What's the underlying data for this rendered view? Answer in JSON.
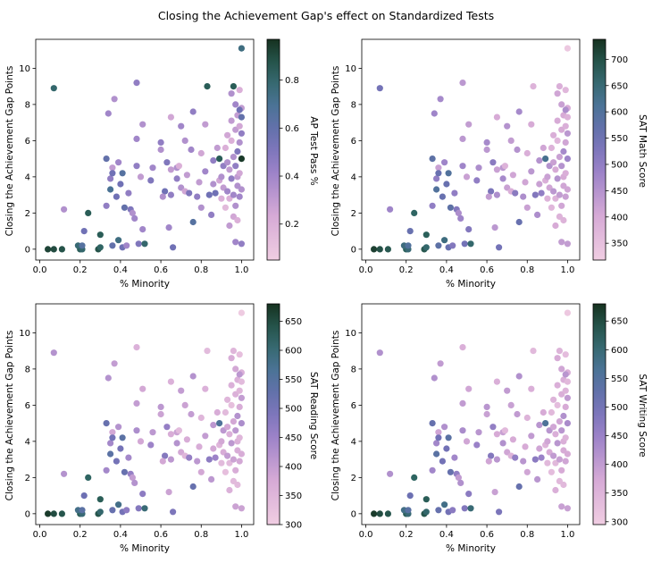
{
  "title": "Closing the Achievement Gap's effect on Standardized Tests",
  "chart_data": [
    {
      "type": "scatter",
      "xlabel": "% Minority",
      "ylabel": "Closing the Achievement Gap Points",
      "colorbar_label": "AP Test Pass %",
      "xlim": [
        -0.02,
        1.06
      ],
      "ylim": [
        -0.6,
        11.6
      ],
      "xticks": [
        "0.0",
        "0.2",
        "0.4",
        "0.6",
        "0.8",
        "1.0"
      ],
      "yticks": [
        "0",
        "2",
        "4",
        "6",
        "8",
        "10"
      ],
      "clim": [
        0.05,
        0.97
      ],
      "colorbar_ticks": [
        "0.2",
        "0.4",
        "0.6",
        "0.8"
      ]
    },
    {
      "type": "scatter",
      "xlabel": "% Minority",
      "ylabel": "Closing the Achievement Gap Points",
      "colorbar_label": "SAT Math Score",
      "xlim": [
        -0.02,
        1.06
      ],
      "ylim": [
        -0.6,
        11.6
      ],
      "xticks": [
        "0.0",
        "0.2",
        "0.4",
        "0.6",
        "0.8",
        "1.0"
      ],
      "yticks": [
        "0",
        "2",
        "4",
        "6",
        "8",
        "10"
      ],
      "clim": [
        318,
        738
      ],
      "colorbar_ticks": [
        "350",
        "400",
        "450",
        "500",
        "550",
        "600",
        "650",
        "700"
      ]
    },
    {
      "type": "scatter",
      "xlabel": "% Minority",
      "ylabel": "Closing the Achievement Gap Points",
      "colorbar_label": "SAT Reading Score",
      "xlim": [
        -0.02,
        1.06
      ],
      "ylim": [
        -0.6,
        11.6
      ],
      "xticks": [
        "0.0",
        "0.2",
        "0.4",
        "0.6",
        "0.8",
        "1.0"
      ],
      "yticks": [
        "0",
        "2",
        "4",
        "6",
        "8",
        "10"
      ],
      "clim": [
        300,
        680
      ],
      "colorbar_ticks": [
        "300",
        "350",
        "400",
        "450",
        "500",
        "550",
        "600",
        "650"
      ]
    },
    {
      "type": "scatter",
      "xlabel": "% Minority",
      "ylabel": "Closing the Achievement Gap Points",
      "colorbar_label": "SAT Writing Score",
      "xlim": [
        -0.02,
        1.06
      ],
      "ylim": [
        -0.6,
        11.6
      ],
      "xticks": [
        "0.0",
        "0.2",
        "0.4",
        "0.6",
        "0.8",
        "1.0"
      ],
      "yticks": [
        "0",
        "2",
        "4",
        "6",
        "8",
        "10"
      ],
      "clim": [
        295,
        680
      ],
      "colorbar_ticks": [
        "300",
        "350",
        "400",
        "450",
        "500",
        "550",
        "600",
        "650"
      ]
    }
  ],
  "points": [
    [
      0.04,
      0,
      0.92,
      720,
      670,
      670
    ],
    [
      0.07,
      0,
      0.9,
      700,
      650,
      650
    ],
    [
      0.11,
      0,
      0.88,
      690,
      640,
      640
    ],
    [
      0.2,
      0,
      0.85,
      680,
      630,
      630
    ],
    [
      0.21,
      0,
      0.8,
      650,
      600,
      600
    ],
    [
      0.29,
      0,
      0.88,
      690,
      640,
      640
    ],
    [
      0.3,
      0.1,
      0.82,
      660,
      610,
      610
    ],
    [
      0.19,
      0.2,
      0.78,
      640,
      580,
      580
    ],
    [
      0.21,
      0.2,
      0.65,
      600,
      540,
      540
    ],
    [
      0.3,
      0.8,
      0.85,
      680,
      630,
      630
    ],
    [
      0.36,
      0.2,
      0.6,
      580,
      520,
      520
    ],
    [
      0.39,
      0.5,
      0.75,
      640,
      580,
      580
    ],
    [
      0.41,
      0.1,
      0.55,
      560,
      500,
      500
    ],
    [
      0.43,
      0.2,
      0.4,
      520,
      470,
      470
    ],
    [
      0.49,
      0.3,
      0.5,
      540,
      480,
      480
    ],
    [
      0.52,
      0.3,
      0.8,
      660,
      600,
      600
    ],
    [
      0.51,
      1.1,
      0.4,
      520,
      470,
      470
    ],
    [
      0.22,
      1.0,
      0.55,
      560,
      510,
      510
    ],
    [
      0.24,
      2.0,
      0.85,
      670,
      620,
      620
    ],
    [
      0.12,
      2.2,
      0.35,
      480,
      420,
      420
    ],
    [
      0.07,
      8.9,
      0.8,
      540,
      420,
      420
    ],
    [
      0.33,
      2.4,
      0.45,
      500,
      440,
      440
    ],
    [
      0.35,
      3.3,
      0.7,
      600,
      540,
      540
    ],
    [
      0.38,
      2.9,
      0.55,
      560,
      500,
      500
    ],
    [
      0.35,
      3.9,
      0.45,
      500,
      440,
      440
    ],
    [
      0.36,
      4.5,
      0.3,
      420,
      380,
      380
    ],
    [
      0.33,
      5.0,
      0.6,
      580,
      520,
      520
    ],
    [
      0.36,
      4.2,
      0.55,
      560,
      500,
      500
    ],
    [
      0.34,
      7.5,
      0.4,
      480,
      420,
      420
    ],
    [
      0.37,
      8.3,
      0.35,
      470,
      400,
      400
    ],
    [
      0.39,
      4.8,
      0.4,
      480,
      420,
      420
    ],
    [
      0.41,
      4.2,
      0.65,
      600,
      540,
      540
    ],
    [
      0.4,
      3.6,
      0.55,
      560,
      500,
      500
    ],
    [
      0.42,
      2.3,
      0.6,
      580,
      520,
      520
    ],
    [
      0.44,
      3.1,
      0.45,
      500,
      440,
      440
    ],
    [
      0.45,
      2.2,
      0.5,
      520,
      460,
      460
    ],
    [
      0.46,
      2.0,
      0.35,
      460,
      400,
      400
    ],
    [
      0.47,
      1.7,
      0.4,
      480,
      420,
      420
    ],
    [
      0.48,
      9.2,
      0.45,
      440,
      360,
      360
    ],
    [
      0.48,
      6.1,
      0.4,
      440,
      400,
      400
    ],
    [
      0.51,
      6.9,
      0.35,
      430,
      380,
      380
    ],
    [
      0.5,
      4.0,
      0.3,
      420,
      380,
      380
    ],
    [
      0.48,
      4.6,
      0.45,
      480,
      430,
      430
    ],
    [
      0.55,
      3.8,
      0.5,
      500,
      450,
      450
    ],
    [
      0.56,
      4.5,
      0.4,
      460,
      410,
      410
    ],
    [
      0.6,
      5.9,
      0.45,
      470,
      410,
      410
    ],
    [
      0.6,
      5.5,
      0.35,
      440,
      390,
      390
    ],
    [
      0.62,
      3.2,
      0.55,
      530,
      480,
      480
    ],
    [
      0.63,
      4.8,
      0.5,
      510,
      460,
      460
    ],
    [
      0.61,
      2.9,
      0.35,
      430,
      380,
      380
    ],
    [
      0.64,
      1.2,
      0.4,
      440,
      390,
      390
    ],
    [
      0.65,
      3.0,
      0.45,
      460,
      410,
      410
    ],
    [
      0.65,
      4.4,
      0.3,
      420,
      370,
      370
    ],
    [
      0.65,
      7.3,
      0.25,
      400,
      360,
      360
    ],
    [
      0.66,
      0.1,
      0.55,
      540,
      490,
      490
    ],
    [
      0.68,
      3.9,
      0.45,
      470,
      420,
      420
    ],
    [
      0.68,
      4.5,
      0.35,
      440,
      390,
      390
    ],
    [
      0.69,
      4.6,
      0.2,
      380,
      340,
      340
    ],
    [
      0.7,
      3.4,
      0.35,
      420,
      380,
      380
    ],
    [
      0.7,
      6.8,
      0.4,
      450,
      400,
      400
    ],
    [
      0.72,
      3.2,
      0.25,
      390,
      350,
      350
    ],
    [
      0.73,
      4.1,
      0.3,
      410,
      370,
      370
    ],
    [
      0.72,
      6.0,
      0.35,
      430,
      390,
      390
    ],
    [
      0.74,
      3.1,
      0.5,
      510,
      460,
      460
    ],
    [
      0.75,
      5.5,
      0.4,
      450,
      400,
      400
    ],
    [
      0.76,
      7.6,
      0.45,
      470,
      420,
      420
    ],
    [
      0.76,
      1.5,
      0.65,
      560,
      520,
      520
    ],
    [
      0.78,
      2.9,
      0.45,
      460,
      410,
      410
    ],
    [
      0.79,
      3.7,
      0.3,
      410,
      370,
      370
    ],
    [
      0.8,
      2.3,
      0.35,
      420,
      380,
      380
    ],
    [
      0.8,
      5.3,
      0.25,
      390,
      350,
      350
    ],
    [
      0.82,
      6.9,
      0.3,
      400,
      360,
      360
    ],
    [
      0.82,
      4.3,
      0.4,
      440,
      400,
      400
    ],
    [
      0.83,
      9.0,
      0.85,
      380,
      340,
      340
    ],
    [
      0.84,
      3.0,
      0.55,
      520,
      470,
      470
    ],
    [
      0.85,
      1.9,
      0.45,
      460,
      410,
      410
    ],
    [
      0.86,
      3.6,
      0.35,
      420,
      380,
      380
    ],
    [
      0.86,
      4.9,
      0.45,
      450,
      410,
      410
    ],
    [
      0.87,
      3.1,
      0.55,
      500,
      450,
      450
    ],
    [
      0.88,
      5.6,
      0.3,
      410,
      370,
      370
    ],
    [
      0.89,
      5.0,
      0.85,
      620,
      560,
      560
    ],
    [
      0.89,
      3.8,
      0.25,
      390,
      350,
      350
    ],
    [
      0.9,
      2.8,
      0.2,
      380,
      340,
      340
    ],
    [
      0.9,
      4.0,
      0.35,
      420,
      380,
      380
    ],
    [
      0.91,
      3.4,
      0.3,
      410,
      370,
      370
    ],
    [
      0.91,
      4.6,
      0.45,
      450,
      410,
      410
    ],
    [
      0.92,
      2.3,
      0.15,
      370,
      330,
      330
    ],
    [
      0.92,
      5.6,
      0.2,
      380,
      340,
      340
    ],
    [
      0.93,
      4.8,
      0.35,
      420,
      380,
      380
    ],
    [
      0.93,
      3.2,
      0.4,
      440,
      400,
      400
    ],
    [
      0.93,
      6.3,
      0.25,
      390,
      350,
      350
    ],
    [
      0.94,
      4.4,
      0.3,
      400,
      360,
      360
    ],
    [
      0.94,
      2.8,
      0.2,
      380,
      340,
      340
    ],
    [
      0.94,
      1.3,
      0.3,
      400,
      360,
      360
    ],
    [
      0.95,
      3.9,
      0.45,
      450,
      410,
      410
    ],
    [
      0.95,
      7.1,
      0.3,
      400,
      360,
      360
    ],
    [
      0.95,
      6.0,
      0.2,
      370,
      330,
      330
    ],
    [
      0.95,
      8.6,
      0.35,
      410,
      370,
      370
    ],
    [
      0.96,
      1.8,
      0.25,
      380,
      340,
      340
    ],
    [
      0.96,
      3.0,
      0.4,
      430,
      390,
      390
    ],
    [
      0.96,
      5.1,
      0.35,
      420,
      380,
      380
    ],
    [
      0.96,
      9.0,
      0.85,
      390,
      350,
      350
    ],
    [
      0.97,
      6.6,
      0.3,
      400,
      360,
      360
    ],
    [
      0.97,
      4.6,
      0.45,
      450,
      410,
      410
    ],
    [
      0.97,
      8.0,
      0.4,
      420,
      380,
      380
    ],
    [
      0.97,
      2.4,
      0.35,
      410,
      370,
      370
    ],
    [
      0.97,
      0.4,
      0.4,
      430,
      390,
      390
    ],
    [
      0.98,
      7.4,
      0.3,
      400,
      360,
      360
    ],
    [
      0.98,
      5.4,
      0.5,
      470,
      420,
      420
    ],
    [
      0.98,
      3.5,
      0.35,
      410,
      370,
      370
    ],
    [
      0.98,
      4.0,
      0.3,
      400,
      360,
      360
    ],
    [
      0.99,
      6.8,
      0.25,
      390,
      350,
      350
    ],
    [
      0.99,
      8.8,
      0.2,
      370,
      330,
      330
    ],
    [
      0.99,
      5.9,
      0.35,
      410,
      370,
      370
    ],
    [
      0.99,
      2.9,
      0.4,
      420,
      380,
      380
    ],
    [
      1.0,
      7.8,
      0.3,
      400,
      360,
      360
    ],
    [
      1.0,
      7.3,
      0.6,
      380,
      340,
      340
    ],
    [
      1.0,
      6.4,
      0.45,
      440,
      400,
      400
    ],
    [
      1.0,
      5.0,
      0.95,
      480,
      430,
      430
    ],
    [
      1.0,
      3.3,
      0.35,
      410,
      370,
      370
    ],
    [
      1.0,
      0.3,
      0.45,
      430,
      390,
      390
    ],
    [
      1.0,
      11.1,
      0.75,
      330,
      305,
      305
    ],
    [
      0.99,
      7.7,
      0.55,
      460,
      410,
      410
    ],
    [
      0.99,
      4.2,
      0.25,
      390,
      350,
      350
    ],
    [
      0.98,
      1.6,
      0.2,
      380,
      340,
      340
    ]
  ]
}
